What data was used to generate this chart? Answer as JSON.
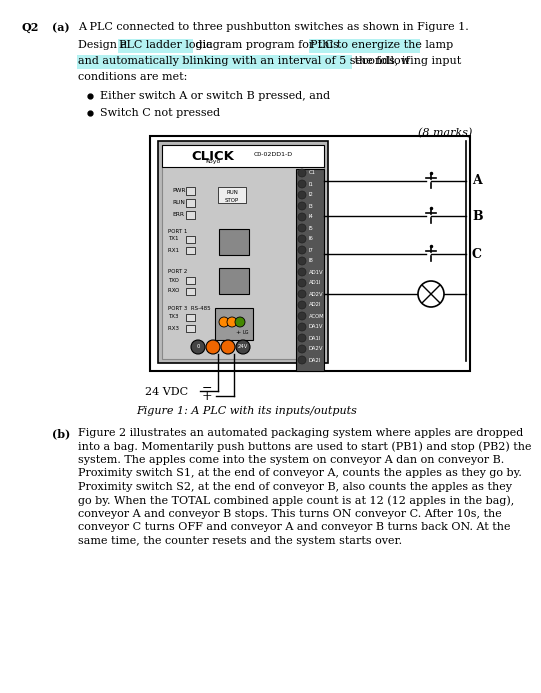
{
  "title_q": "Q2",
  "part_a_label": "(a)",
  "part_a_line1": "A PLC connected to three pushbutton switches as shown in Figure 1.",
  "part_a_line2a": "Design a ",
  "part_a_line2b": "PLC ladder logic",
  "part_a_line2c": " diagram program for this ",
  "part_a_line2d": "PLC to energize the lamp",
  "part_a_line3a": "and automatically blinking with an interval of 5 seconds, if",
  "part_a_line3b": " the following input",
  "part_a_line4": "conditions are met:",
  "bullet1": "Either switch A or switch B pressed, and",
  "bullet2": "Switch C not pressed",
  "marks": "(8 marks)",
  "figure_caption": "Figure 1: A PLC with its inputs/outputs",
  "plc_label": "CLICK",
  "plc_sublabel": "Koyo",
  "plc_model": "C0-02DD1-D",
  "label_24vdc": "24 VDC",
  "part_b_label": "(b)",
  "part_b_lines": [
    "Figure 2 illustrates an automated packaging system where apples are dropped",
    "into a bag. Momentarily push buttons are used to start (PB1) and stop (PB2) the",
    "system. The apples come into the system on conveyor A dan on conveyor B.",
    "Proximity switch S1, at the end of conveyor A, counts the apples as they go by.",
    "Proximity switch S2, at the end of conveyor B, also counts the apples as they",
    "go by. When the TOTAL combined apple count is at 12 (12 apples in the bag),",
    "conveyor A and conveyor B stops. This turns ON conveyor C. After 10s, the",
    "conveyor C turns OFF and conveyor A and conveyor B turns back ON. At the",
    "same time, the counter resets and the system starts over."
  ],
  "bg_color": "#ffffff",
  "highlight_cyan": "#a8f0f0",
  "text_color": "#000000",
  "term_labels": [
    "C1",
    "I1",
    "I2",
    "I3",
    "I4",
    "I5",
    "I6",
    "I7",
    "I8",
    "AD1V",
    "AD1I",
    "AD2V",
    "AD2I",
    "ACOM",
    "DA1V",
    "DA1I",
    "DA2V",
    "DA2I"
  ]
}
